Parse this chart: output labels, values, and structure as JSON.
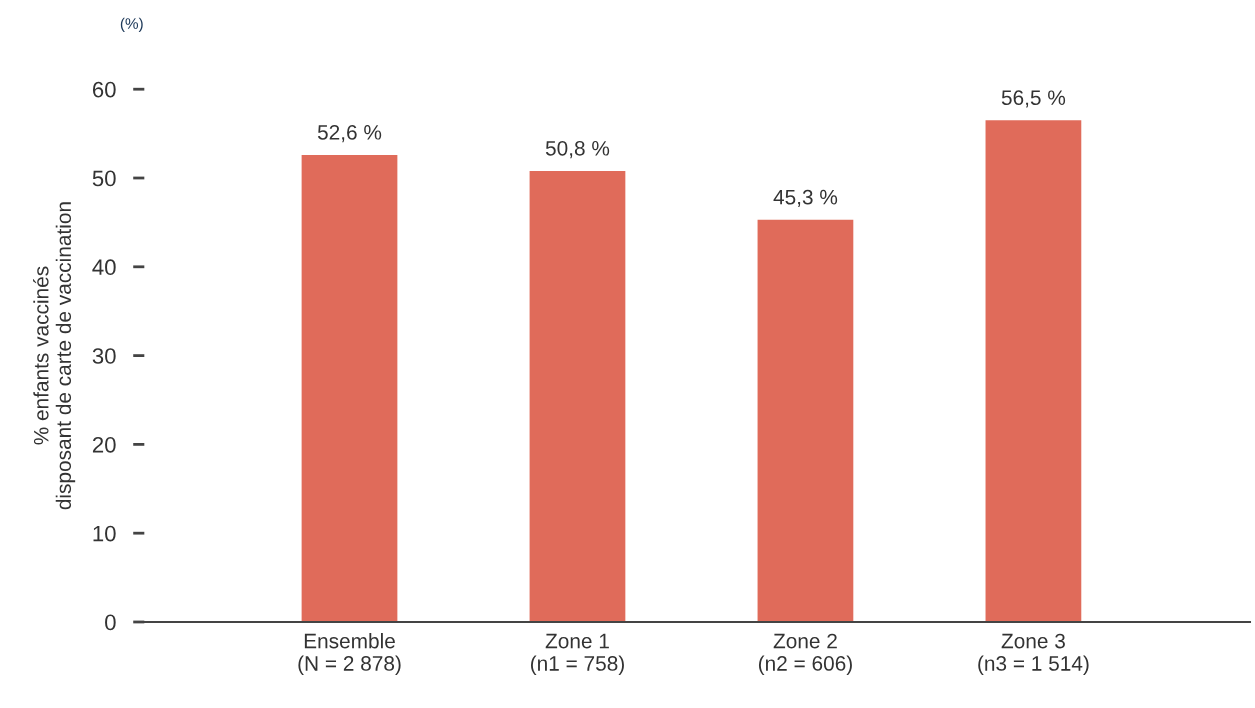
{
  "chart_data": {
    "type": "bar",
    "ylabel": "% enfants vaccinés\ndisposant de carte de vaccination",
    "annotations": [
      "(%)"
    ],
    "categories": [
      "Ensemble\n(N = 2 878)",
      "Zone 1\n(n1 = 758)",
      "Zone 2\n(n2 = 606)",
      "Zone 3\n(n3 = 1 514)"
    ],
    "values": [
      52.6,
      50.8,
      45.3,
      56.5
    ],
    "value_labels": [
      "52,6 %",
      "50,8 %",
      "45,3 %",
      "56,5 %"
    ],
    "color": "#e06b5a",
    "ylim": [
      0,
      60
    ],
    "yticks": [
      0,
      10,
      20,
      30,
      40,
      50,
      60
    ],
    "grid": false,
    "legend": false
  }
}
